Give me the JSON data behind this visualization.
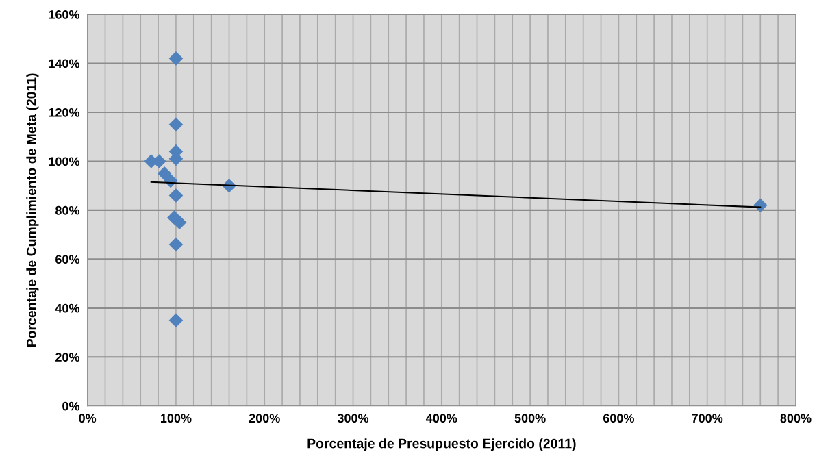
{
  "chart_data": {
    "type": "scatter",
    "xlabel": "Porcentaje de Presupuesto Ejercido (2011)",
    "ylabel": "Porcentaje de Cumplimiento de Meta (2011)",
    "series": [
      {
        "type": "scatter",
        "color": "#4f81bd",
        "marker": "diamond",
        "x": [
          100,
          100,
          100,
          100,
          72,
          81,
          87,
          94,
          100,
          98,
          104,
          100,
          100,
          160,
          760
        ],
        "values": [
          142,
          115,
          104,
          101,
          100,
          100,
          95,
          92,
          86,
          77,
          75,
          66,
          35,
          90,
          82
        ]
      },
      {
        "type": "line",
        "color": "#000000",
        "marker": "none",
        "line_style": "solid",
        "x": [
          72,
          760
        ],
        "values": [
          91.5,
          81.2
        ]
      }
    ],
    "xlim": [
      0,
      800
    ],
    "ylim": [
      0,
      160
    ],
    "xticks": [
      {
        "value": 0,
        "label": "0%"
      },
      {
        "value": 20,
        "label": null
      },
      {
        "value": 40,
        "label": null
      },
      {
        "value": 60,
        "label": null
      },
      {
        "value": 80,
        "label": null
      },
      {
        "value": 100,
        "label": "100%"
      },
      {
        "value": 120,
        "label": null
      },
      {
        "value": 140,
        "label": null
      },
      {
        "value": 160,
        "label": null
      },
      {
        "value": 180,
        "label": null
      },
      {
        "value": 200,
        "label": "200%"
      },
      {
        "value": 220,
        "label": null
      },
      {
        "value": 240,
        "label": null
      },
      {
        "value": 260,
        "label": null
      },
      {
        "value": 280,
        "label": null
      },
      {
        "value": 300,
        "label": "300%"
      },
      {
        "value": 320,
        "label": null
      },
      {
        "value": 340,
        "label": null
      },
      {
        "value": 360,
        "label": null
      },
      {
        "value": 380,
        "label": null
      },
      {
        "value": 400,
        "label": "400%"
      },
      {
        "value": 420,
        "label": null
      },
      {
        "value": 440,
        "label": null
      },
      {
        "value": 460,
        "label": null
      },
      {
        "value": 480,
        "label": null
      },
      {
        "value": 500,
        "label": "500%"
      },
      {
        "value": 520,
        "label": null
      },
      {
        "value": 540,
        "label": null
      },
      {
        "value": 560,
        "label": null
      },
      {
        "value": 580,
        "label": null
      },
      {
        "value": 600,
        "label": "600%"
      },
      {
        "value": 620,
        "label": null
      },
      {
        "value": 640,
        "label": null
      },
      {
        "value": 660,
        "label": null
      },
      {
        "value": 680,
        "label": null
      },
      {
        "value": 700,
        "label": "700%"
      },
      {
        "value": 720,
        "label": null
      },
      {
        "value": 740,
        "label": null
      },
      {
        "value": 760,
        "label": null
      },
      {
        "value": 780,
        "label": null
      },
      {
        "value": 800,
        "label": "800%"
      }
    ],
    "yticks": [
      {
        "value": 0,
        "label": "0%"
      },
      {
        "value": 20,
        "label": "20%"
      },
      {
        "value": 40,
        "label": "40%"
      },
      {
        "value": 60,
        "label": "60%"
      },
      {
        "value": 80,
        "label": "80%"
      },
      {
        "value": 100,
        "label": "100%"
      },
      {
        "value": 120,
        "label": "120%"
      },
      {
        "value": 140,
        "label": "140%"
      },
      {
        "value": 160,
        "label": "160%"
      }
    ],
    "grid": true,
    "legend": false
  }
}
